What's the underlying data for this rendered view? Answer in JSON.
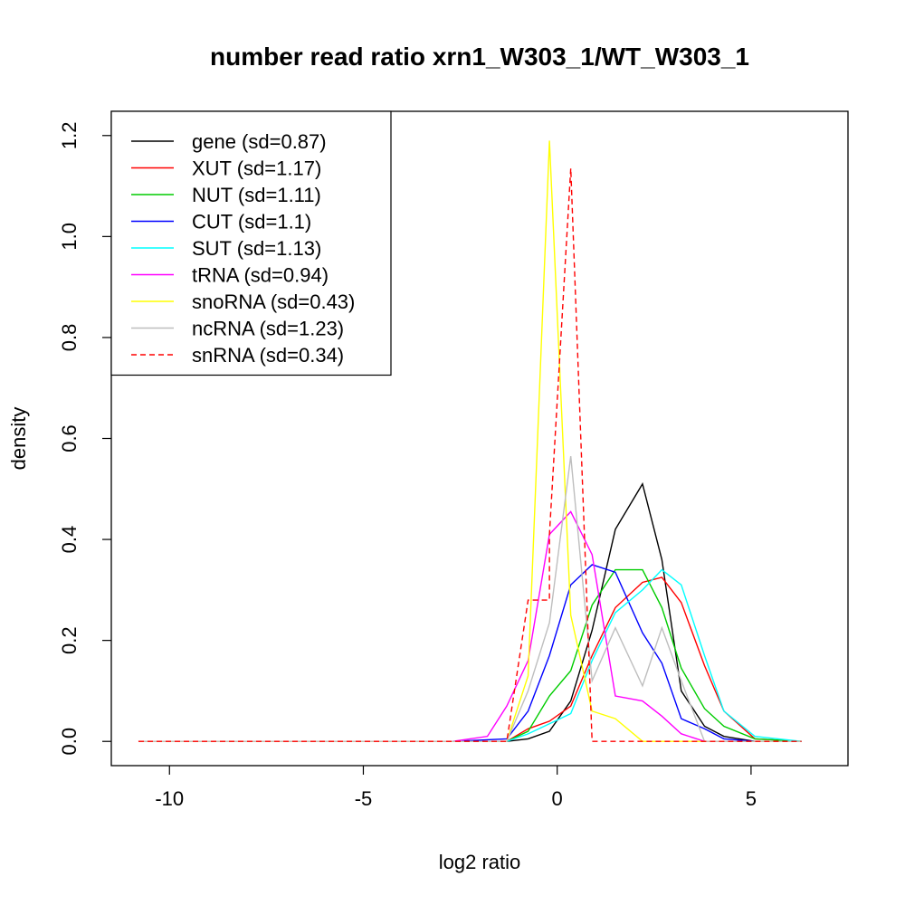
{
  "chart_data": {
    "type": "line",
    "title": "number read ratio xrn1_W303_1/WT_W303_1",
    "xlabel": "log2 ratio",
    "ylabel": "density",
    "xlim": [
      -11.5,
      7.5
    ],
    "ylim": [
      -0.048,
      1.248
    ],
    "x_ticks": [
      {
        "value": -10,
        "label": "-10"
      },
      {
        "value": -5,
        "label": "-5"
      },
      {
        "value": 0,
        "label": "0"
      },
      {
        "value": 5,
        "label": "5"
      }
    ],
    "y_ticks": [
      {
        "value": 0.0,
        "label": "0.0"
      },
      {
        "value": 0.2,
        "label": "0.2"
      },
      {
        "value": 0.4,
        "label": "0.4"
      },
      {
        "value": 0.6,
        "label": "0.6"
      },
      {
        "value": 0.8,
        "label": "0.8"
      },
      {
        "value": 1.0,
        "label": "1.0"
      },
      {
        "value": 1.2,
        "label": "1.2"
      }
    ],
    "legend_position": "top-left",
    "series": [
      {
        "name": "gene (sd=0.87)",
        "color": "#000000",
        "dashed": false,
        "points": [
          [
            -10.8,
            0
          ],
          [
            -1.3,
            0
          ],
          [
            -0.75,
            0.005
          ],
          [
            -0.2,
            0.02
          ],
          [
            0.35,
            0.08
          ],
          [
            0.9,
            0.22
          ],
          [
            1.5,
            0.42
          ],
          [
            2.2,
            0.51
          ],
          [
            2.7,
            0.36
          ],
          [
            3.2,
            0.1
          ],
          [
            3.8,
            0.03
          ],
          [
            4.3,
            0.01
          ],
          [
            5.1,
            0
          ],
          [
            6.3,
            0
          ]
        ]
      },
      {
        "name": "XUT (sd=1.17)",
        "color": "#ff0000",
        "dashed": false,
        "points": [
          [
            -10.8,
            0
          ],
          [
            -1.3,
            0
          ],
          [
            -0.75,
            0.025
          ],
          [
            -0.2,
            0.04
          ],
          [
            0.35,
            0.07
          ],
          [
            0.9,
            0.17
          ],
          [
            1.5,
            0.265
          ],
          [
            2.2,
            0.315
          ],
          [
            2.7,
            0.325
          ],
          [
            3.2,
            0.275
          ],
          [
            3.8,
            0.15
          ],
          [
            4.3,
            0.06
          ],
          [
            5.1,
            0.005
          ],
          [
            6.3,
            0
          ]
        ]
      },
      {
        "name": "NUT (sd=1.11)",
        "color": "#00cc00",
        "dashed": false,
        "points": [
          [
            -10.8,
            0
          ],
          [
            -1.3,
            0
          ],
          [
            -0.75,
            0.02
          ],
          [
            -0.2,
            0.09
          ],
          [
            0.35,
            0.14
          ],
          [
            0.9,
            0.27
          ],
          [
            1.5,
            0.34
          ],
          [
            2.2,
            0.34
          ],
          [
            2.7,
            0.265
          ],
          [
            3.2,
            0.145
          ],
          [
            3.8,
            0.065
          ],
          [
            4.3,
            0.03
          ],
          [
            5.1,
            0.005
          ],
          [
            6.3,
            0
          ]
        ]
      },
      {
        "name": "CUT (sd=1.1)",
        "color": "#0000ff",
        "dashed": false,
        "points": [
          [
            -10.8,
            0
          ],
          [
            -2.7,
            0
          ],
          [
            -1.3,
            0.005
          ],
          [
            -0.75,
            0.06
          ],
          [
            -0.2,
            0.17
          ],
          [
            0.35,
            0.31
          ],
          [
            0.9,
            0.35
          ],
          [
            1.5,
            0.335
          ],
          [
            2.2,
            0.215
          ],
          [
            2.7,
            0.155
          ],
          [
            3.2,
            0.045
          ],
          [
            3.8,
            0.025
          ],
          [
            4.3,
            0.005
          ],
          [
            5.1,
            0
          ],
          [
            6.3,
            0
          ]
        ]
      },
      {
        "name": "SUT (sd=1.13)",
        "color": "#00ffff",
        "dashed": false,
        "points": [
          [
            -10.8,
            0
          ],
          [
            -1.3,
            0
          ],
          [
            -0.75,
            0.015
          ],
          [
            -0.2,
            0.035
          ],
          [
            0.35,
            0.055
          ],
          [
            0.9,
            0.16
          ],
          [
            1.5,
            0.255
          ],
          [
            2.2,
            0.3
          ],
          [
            2.7,
            0.34
          ],
          [
            3.2,
            0.31
          ],
          [
            3.8,
            0.17
          ],
          [
            4.3,
            0.06
          ],
          [
            5.1,
            0.01
          ],
          [
            6.3,
            0
          ]
        ]
      },
      {
        "name": "tRNA (sd=0.94)",
        "color": "#ff00ff",
        "dashed": false,
        "points": [
          [
            -10.8,
            0
          ],
          [
            -2.7,
            0
          ],
          [
            -1.8,
            0.01
          ],
          [
            -1.3,
            0.07
          ],
          [
            -0.75,
            0.16
          ],
          [
            -0.2,
            0.41
          ],
          [
            0.35,
            0.455
          ],
          [
            0.9,
            0.37
          ],
          [
            1.5,
            0.09
          ],
          [
            2.2,
            0.08
          ],
          [
            2.7,
            0.05
          ],
          [
            3.2,
            0.015
          ],
          [
            3.8,
            0
          ],
          [
            6.3,
            0
          ]
        ]
      },
      {
        "name": "snoRNA (sd=0.43)",
        "color": "#ffff00",
        "dashed": false,
        "points": [
          [
            -10.8,
            0
          ],
          [
            -1.3,
            0
          ],
          [
            -0.75,
            0.13
          ],
          [
            -0.2,
            1.19
          ],
          [
            0.35,
            0.25
          ],
          [
            0.9,
            0.06
          ],
          [
            1.5,
            0.045
          ],
          [
            2.2,
            0
          ],
          [
            6.3,
            0
          ]
        ]
      },
      {
        "name": "ncRNA (sd=1.23)",
        "color": "#bebebe",
        "dashed": false,
        "points": [
          [
            -10.8,
            0
          ],
          [
            -1.3,
            0
          ],
          [
            -0.75,
            0.1
          ],
          [
            -0.2,
            0.235
          ],
          [
            0.35,
            0.565
          ],
          [
            0.9,
            0.12
          ],
          [
            1.5,
            0.225
          ],
          [
            2.2,
            0.11
          ],
          [
            2.7,
            0.225
          ],
          [
            3.2,
            0.12
          ],
          [
            3.8,
            0
          ],
          [
            6.3,
            0
          ]
        ]
      },
      {
        "name": "snRNA (sd=0.34)",
        "color": "#ff0000",
        "dashed": true,
        "points": [
          [
            -10.8,
            0
          ],
          [
            -1.3,
            0
          ],
          [
            -0.75,
            0.28
          ],
          [
            -0.2,
            0.28
          ],
          [
            -0.2,
            0.41
          ],
          [
            0.35,
            1.135
          ],
          [
            0.9,
            0
          ],
          [
            6.3,
            0
          ]
        ]
      }
    ]
  }
}
